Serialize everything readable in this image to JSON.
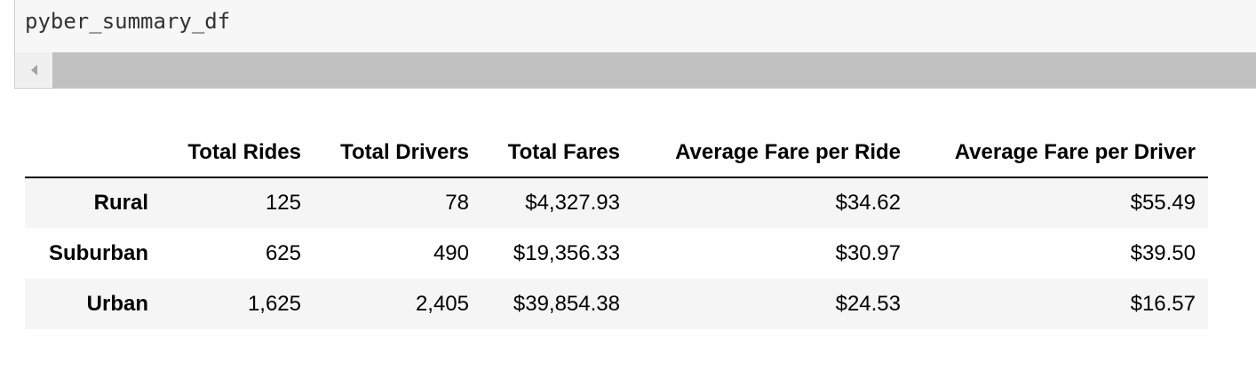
{
  "code_cell": {
    "source": "pyber_summary_df"
  },
  "scrollbar": {
    "left_arrow_icon": "chevron-left-icon"
  },
  "table": {
    "columns": [
      "",
      "Total Rides",
      "Total Drivers",
      "Total Fares",
      "Average Fare per Ride",
      "Average Fare per Driver"
    ],
    "rows": [
      {
        "index": "Rural",
        "values": [
          "125",
          "78",
          "$4,327.93",
          "$34.62",
          "$55.49"
        ]
      },
      {
        "index": "Suburban",
        "values": [
          "625",
          "490",
          "$19,356.33",
          "$30.97",
          "$39.50"
        ]
      },
      {
        "index": "Urban",
        "values": [
          "1,625",
          "2,405",
          "$39,854.38",
          "$24.53",
          "$16.57"
        ]
      }
    ]
  }
}
